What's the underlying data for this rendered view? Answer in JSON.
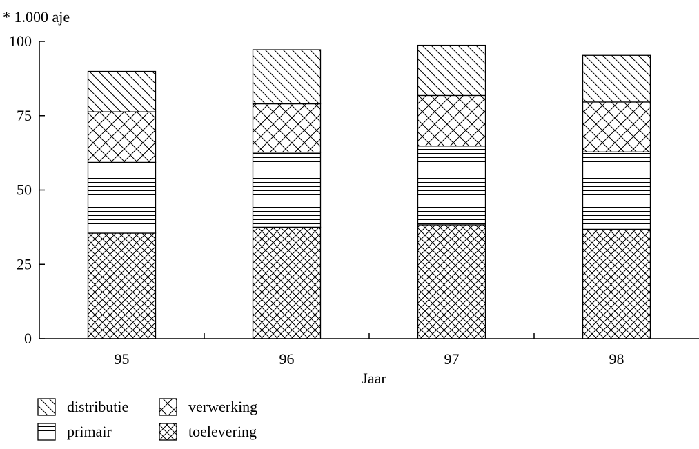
{
  "chart_data": {
    "type": "bar",
    "stacked": true,
    "ylabel": "* 1.000 aje",
    "xlabel": "Jaar",
    "categories": [
      "95",
      "96",
      "97",
      "98"
    ],
    "ylim": [
      0,
      100
    ],
    "yticks": [
      "0",
      "25",
      "50",
      "75",
      "100"
    ],
    "series": [
      {
        "name": "toelevering",
        "values": [
          35.5,
          37.5,
          38.3,
          36.8
        ]
      },
      {
        "name": "primair",
        "values": [
          23.8,
          25.2,
          26.5,
          26.0
        ]
      },
      {
        "name": "verwerking",
        "values": [
          17.0,
          16.3,
          17.0,
          16.8
        ]
      },
      {
        "name": "distributie",
        "values": [
          13.6,
          18.2,
          16.9,
          15.7
        ]
      }
    ],
    "legend": {
      "placement": "bottom-left",
      "order": [
        "distributie",
        "primair",
        "verwerking",
        "toelevering"
      ]
    },
    "grid": false
  }
}
